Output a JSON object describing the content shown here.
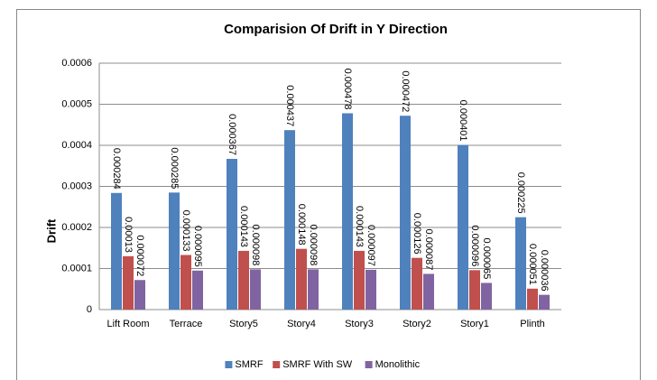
{
  "chart_data": {
    "type": "bar",
    "title": "Comparision Of Drift in Y Direction",
    "y_label": "Drift",
    "categories": [
      "Lift Room",
      "Terrace",
      "Story5",
      "Story4",
      "Story3",
      "Story2",
      "Story1",
      "Plinth"
    ],
    "series": [
      {
        "name": "SMRF",
        "color": "#4f81bd",
        "values": [
          0.000284,
          0.000285,
          0.000367,
          0.000437,
          0.000478,
          0.000472,
          0.000401,
          0.000225
        ]
      },
      {
        "name": "SMRF With SW",
        "color": "#c0504d",
        "values": [
          0.00013,
          0.000133,
          0.000143,
          0.000148,
          0.000143,
          0.000126,
          9.6e-05,
          5.1e-05
        ]
      },
      {
        "name": "Monolithic",
        "color": "#8064a2",
        "values": [
          7.2e-05,
          9.5e-05,
          9.8e-05,
          9.8e-05,
          9.7e-05,
          8.7e-05,
          6.5e-05,
          3.6e-05
        ]
      }
    ],
    "ylim": [
      0,
      0.0006
    ],
    "yticks": [
      0,
      0.0001,
      0.0002,
      0.0003,
      0.0004,
      0.0005,
      0.0006
    ],
    "grid": true,
    "legend": "bottom"
  }
}
